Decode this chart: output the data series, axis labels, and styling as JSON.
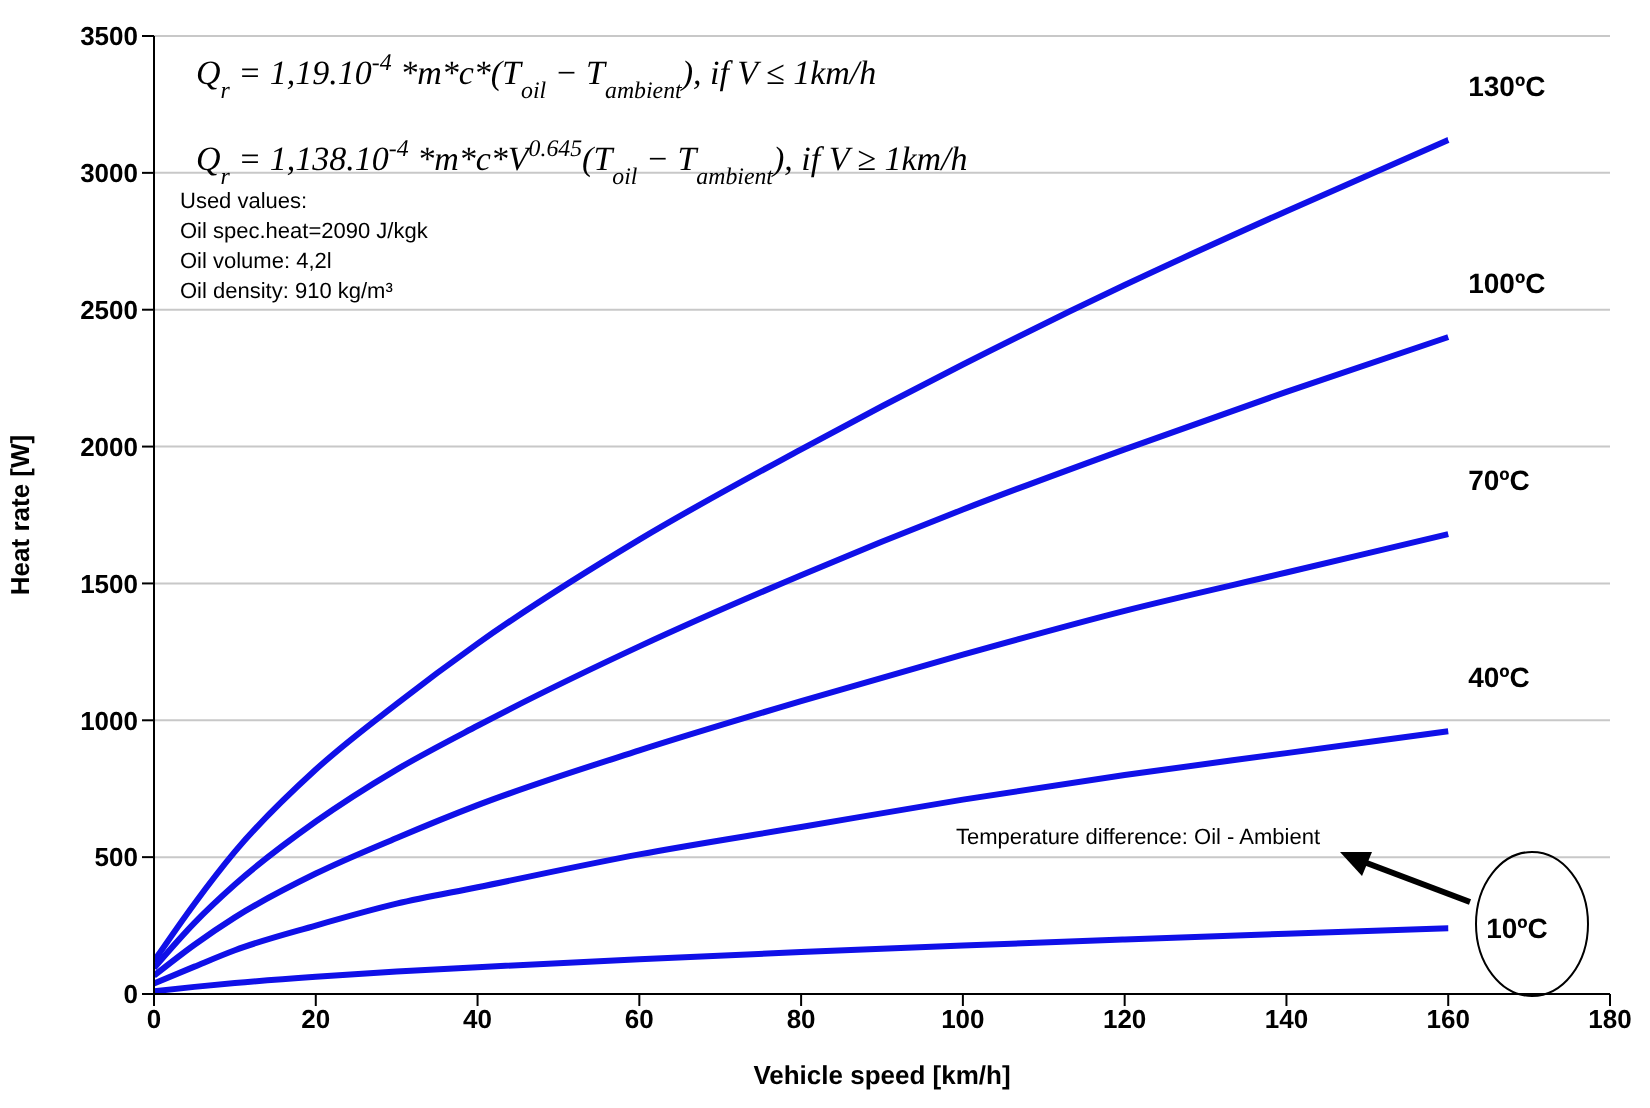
{
  "chart_data": {
    "type": "line",
    "xlabel": "Vehicle speed [km/h]",
    "ylabel": "Heat rate [W]",
    "x": [
      0,
      5,
      10,
      20,
      30,
      40,
      60,
      80,
      100,
      120,
      140,
      160
    ],
    "series": [
      {
        "name": "130ºC",
        "color": "#1010e8",
        "values": [
          120,
          330,
          520,
          820,
          1060,
          1280,
          1660,
          1990,
          2300,
          2590,
          2860,
          3120
        ]
      },
      {
        "name": "100ºC",
        "color": "#1010e8",
        "values": [
          95,
          260,
          400,
          630,
          820,
          980,
          1270,
          1530,
          1770,
          1990,
          2200,
          2400
        ]
      },
      {
        "name": "70ºC",
        "color": "#1010e8",
        "values": [
          67,
          180,
          280,
          440,
          570,
          690,
          890,
          1070,
          1240,
          1400,
          1540,
          1680
        ]
      },
      {
        "name": "40ºC",
        "color": "#1010e8",
        "values": [
          38,
          100,
          160,
          250,
          330,
          390,
          510,
          610,
          710,
          800,
          880,
          960
        ]
      },
      {
        "name": "10ºC",
        "color": "#1010e8",
        "values": [
          10,
          26,
          40,
          63,
          82,
          98,
          127,
          153,
          177,
          199,
          220,
          240
        ]
      }
    ],
    "xlim": [
      0,
      180
    ],
    "xticks": [
      0,
      20,
      40,
      60,
      80,
      100,
      120,
      140,
      160,
      180
    ],
    "ylim": [
      0,
      3500
    ],
    "yticks": [
      0,
      500,
      1000,
      1500,
      2000,
      2500,
      3000,
      3500
    ],
    "grid": "y",
    "marker": "none",
    "line_style": "solid",
    "legend": false,
    "annotations": [
      "Q$_{r}$ = 1,19.10$^{-4}$ *m*c*(T$_{oil}$ − T$_{ambient}$),   if V ≤ 1km/h",
      "Q$_{r}$ = 1,138.10$^{-4}$ *m*c*V$^{0.645}$(T$_{oil}$ − T$_{ambient}$),   if V ≥ 1km/h",
      "Used values:",
      "Oil spec.heat=2090 J/kgk",
      "Oil volume: 4,2l",
      "Oil density: 910 kg/m³",
      "Temperature difference: Oil - Ambient"
    ]
  }
}
